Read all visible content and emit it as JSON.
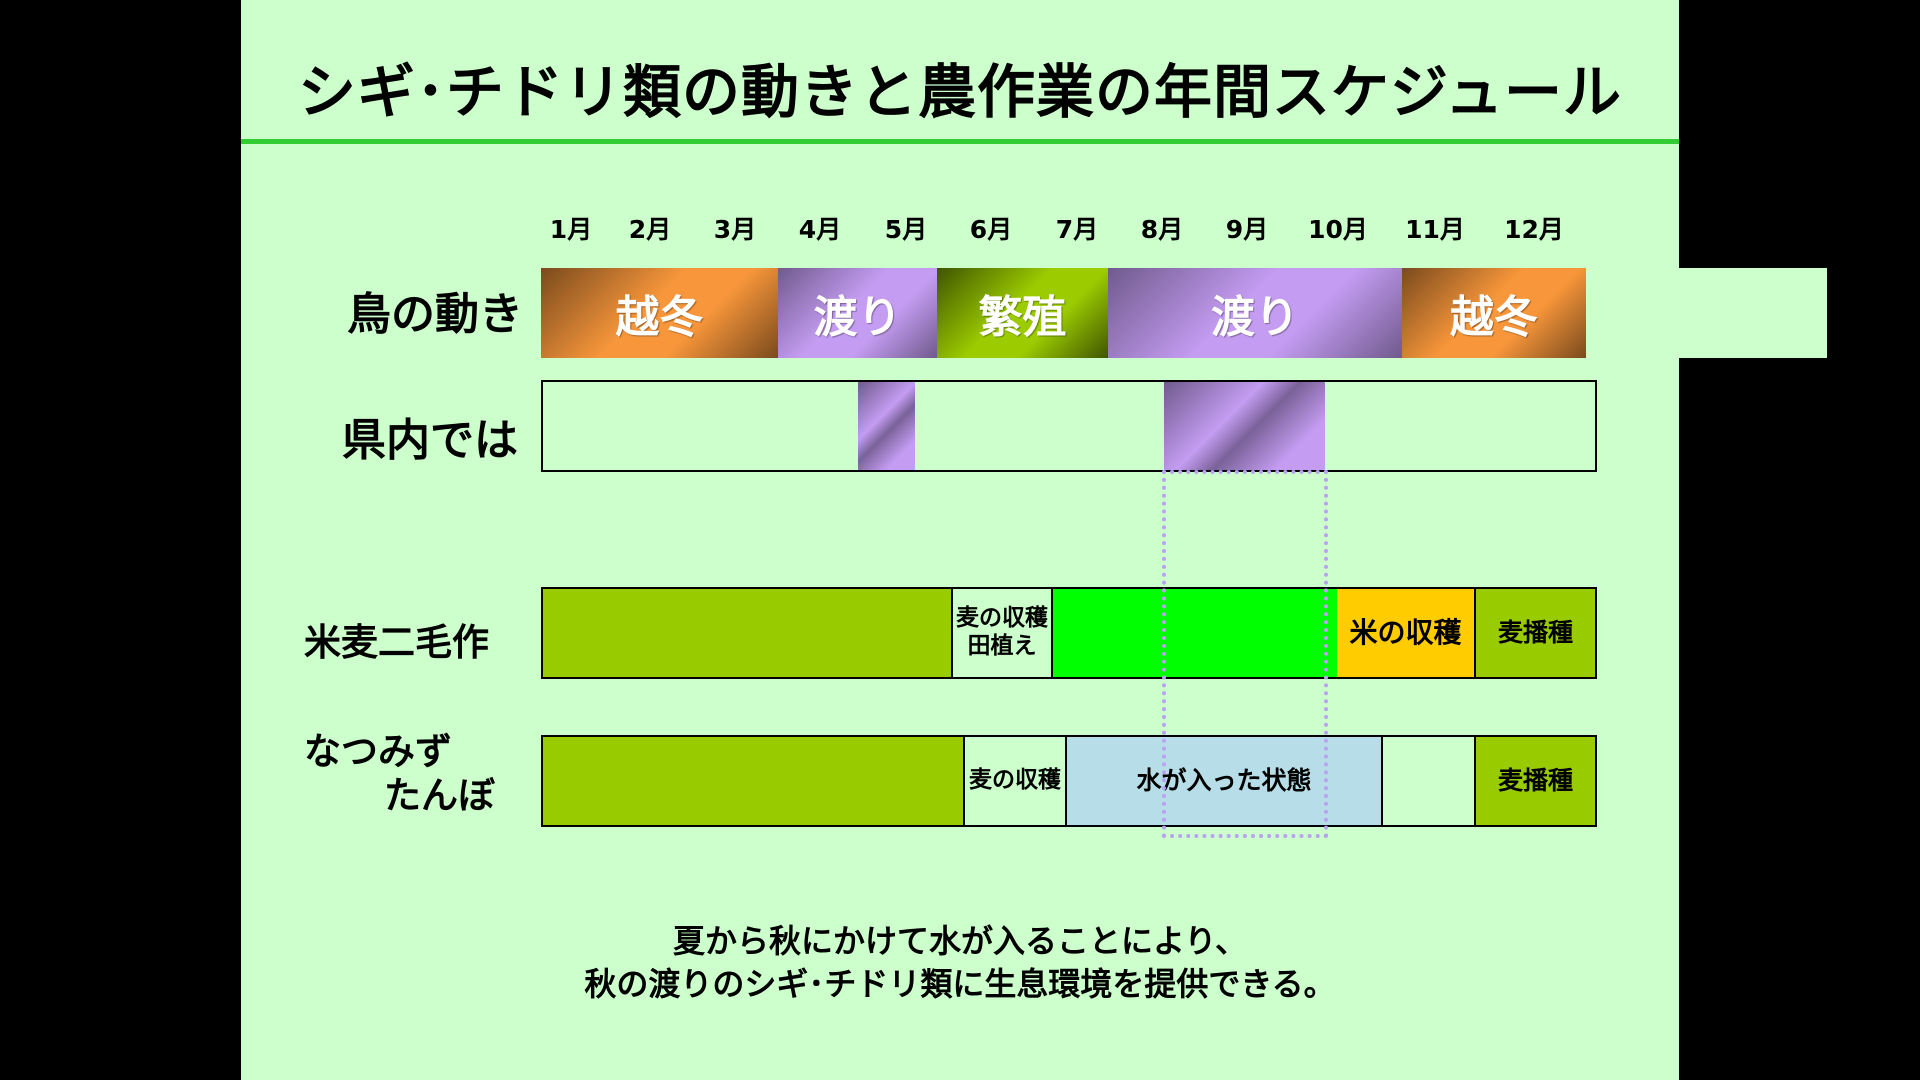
{
  "title": "シギ･チドリ類の動きと農作業の年間スケジュール",
  "months": [
    "1月",
    "2月",
    "3月",
    "4月",
    "5月",
    "6月",
    "7月",
    "8月",
    "9月",
    "10月",
    "11月",
    "12月"
  ],
  "rows": {
    "bird_movement": {
      "label": "鳥の動き",
      "segments": [
        {
          "label": "越冬",
          "color": "#f7963a",
          "color_dark": "#7a4a1d"
        },
        {
          "label": "渡り",
          "color": "#c49cf2",
          "color_dark": "#6f5a8c"
        },
        {
          "label": "繁殖",
          "color": "#9ccc00",
          "color_dark": "#3f5500"
        },
        {
          "label": "渡り",
          "color": "#c49cf2",
          "color_dark": "#6f5a8c"
        },
        {
          "label": "越冬",
          "color": "#f7963a",
          "color_dark": "#7a4a1d"
        }
      ]
    },
    "in_prefecture": {
      "label": "県内では",
      "segments": [
        {
          "label": "",
          "color": "#c49cf2"
        },
        {
          "label": "",
          "color": "#c49cf2"
        }
      ]
    },
    "rice_wheat": {
      "label": "米麦二毛作",
      "segments": [
        {
          "label": "",
          "color": "#99cc00"
        },
        {
          "lines": [
            "麦の収穫",
            "田植え"
          ],
          "color": "#ccffcc"
        },
        {
          "label": "",
          "color": "#00ff00"
        },
        {
          "label": "米の収穫",
          "color": "#ffcc00"
        },
        {
          "label": "麦播種",
          "color": "#99cc00"
        }
      ]
    },
    "natsumizu": {
      "label_lines": [
        "なつみず",
        "たんぼ"
      ],
      "segments": [
        {
          "label": "",
          "color": "#99cc00"
        },
        {
          "label": "麦の収穫",
          "color": "#ccffcc"
        },
        {
          "label": "水が入った状態",
          "color": "#b7dee8"
        },
        {
          "label": "",
          "color": "#ccffcc"
        },
        {
          "label": "麦播種",
          "color": "#99cc00"
        }
      ]
    }
  },
  "footnote": {
    "line1": "夏から秋にかけて水が入ることにより、",
    "line2": "秋の渡りのシギ･チドリ類に生息環境を提供できる。"
  }
}
